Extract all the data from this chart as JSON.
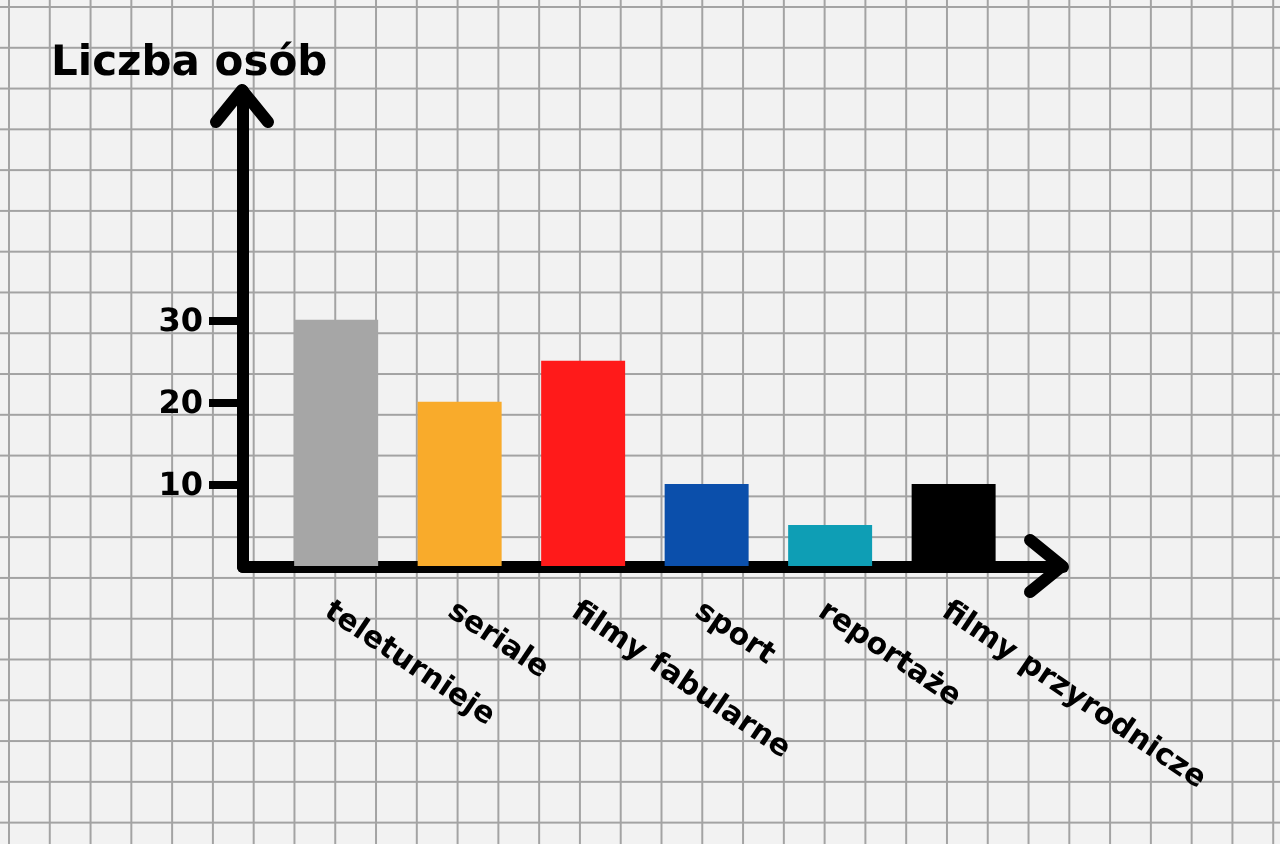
{
  "chart_data": {
    "type": "bar",
    "ylabel": "Liczba osób",
    "categories": [
      "teleturnieje",
      "seriale",
      "filmy fabularne",
      "sport",
      "reportaże",
      "filmy przyrodnicze"
    ],
    "values": [
      30,
      20,
      25,
      10,
      5,
      10
    ],
    "colors": [
      "#a6a6a6",
      "#f9ab2b",
      "#ff1a1a",
      "#0b4fab",
      "#0e9eb5",
      "#000000"
    ],
    "ylim": [
      0,
      58
    ],
    "yticks": [
      10,
      20,
      30
    ]
  }
}
